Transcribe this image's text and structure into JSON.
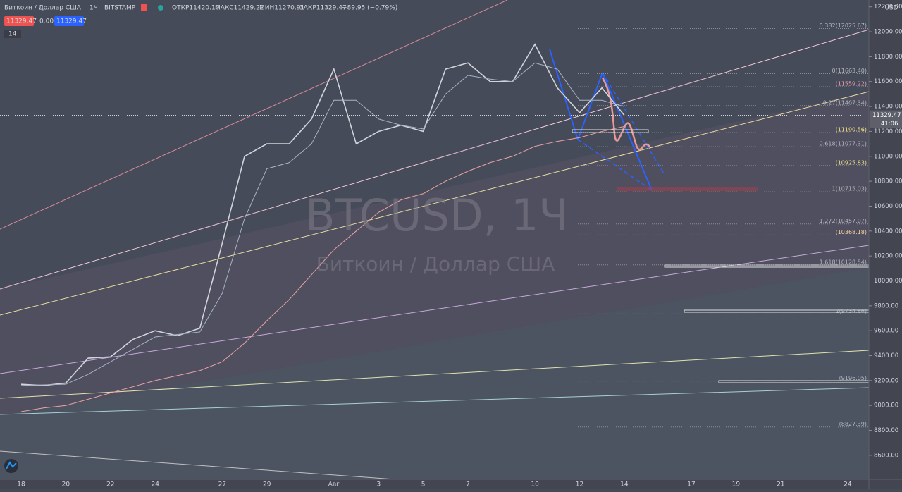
{
  "chart_data": {
    "type": "line",
    "title": "Биткоин / Доллар США",
    "interval": "1Ч",
    "exchange": "BITSTAMP",
    "ohlc": [
      "ОТКР11420.10",
      "МАКС11429.22",
      "МИН11270.91",
      "ЗАКР11329.47",
      "−89.95 (−0.79%)"
    ],
    "quote": {
      "bid": "11329.47",
      "spread": "0.00",
      "ask": "11329.47"
    },
    "indicator_count": "14",
    "currency": "USD",
    "watermark": {
      "symbol": "BTCUSD, 1Ч",
      "name": "Биткоин / Доллар США"
    },
    "last_price": {
      "value": 11329.47,
      "label": "11329.47",
      "countdown": "41:06",
      "color": "#5d606b"
    },
    "categories": [
      "18",
      null,
      "20",
      null,
      "22",
      null,
      "24",
      null,
      null,
      "27",
      null,
      "29",
      null,
      null,
      "Авг",
      null,
      "3",
      null,
      "5",
      null,
      "7",
      null,
      null,
      "10",
      null,
      "12",
      null,
      "14",
      null,
      null,
      "17",
      null,
      "19",
      null,
      "21",
      null,
      null,
      "24"
    ],
    "series": [
      {
        "color": "#d1d4dc",
        "values": [
          9170,
          9160,
          9180,
          9380,
          9390,
          9530,
          9600,
          9560,
          9620,
          10300,
          11000,
          11100,
          11100,
          11300,
          11700,
          11100,
          11200,
          11250,
          11200,
          11700,
          11750,
          11600,
          11600,
          11900,
          11550,
          11350,
          11550,
          11330,
          null,
          null,
          null,
          null,
          null,
          null,
          null,
          null,
          null,
          null
        ]
      },
      {
        "color": "#a7b3c4",
        "values": [
          9160,
          9165,
          9170,
          9250,
          9350,
          9450,
          9550,
          9570,
          9590,
          9900,
          10500,
          10900,
          10950,
          11100,
          11450,
          11450,
          11300,
          11250,
          11220,
          11500,
          11650,
          11620,
          11600,
          11750,
          11700,
          11450,
          11450,
          11400,
          null,
          null,
          null,
          null,
          null,
          null,
          null,
          null,
          null,
          null
        ]
      },
      {
        "color": "#e8a3a3",
        "values": [
          8950,
          8980,
          9000,
          9050,
          9100,
          9150,
          9200,
          9240,
          9280,
          9350,
          9500,
          9680,
          9850,
          10050,
          10250,
          10400,
          10550,
          10650,
          10700,
          10800,
          10880,
          10950,
          11000,
          11080,
          11120,
          11150,
          11200,
          11240,
          null,
          null,
          null,
          null,
          null,
          null,
          null,
          null,
          null,
          null
        ]
      }
    ],
    "ylim": [
      8407,
      12255
    ],
    "yticks": [
      {
        "value": 8600,
        "label": "8600.00"
      },
      {
        "value": 8800,
        "label": "8800.00"
      },
      {
        "value": 9000,
        "label": "9000.00"
      },
      {
        "value": 9200,
        "label": "9200.00"
      },
      {
        "value": 9400,
        "label": "9400.00"
      },
      {
        "value": 9600,
        "label": "9600.00"
      },
      {
        "value": 9800,
        "label": "9800.00"
      },
      {
        "value": 10000,
        "label": "10000.00"
      },
      {
        "value": 10200,
        "label": "10200.00"
      },
      {
        "value": 10400,
        "label": "10400.00"
      },
      {
        "value": 10600,
        "label": "10600.00"
      },
      {
        "value": 10800,
        "label": "10800.00"
      },
      {
        "value": 11000,
        "label": "11000.00"
      },
      {
        "value": 11200,
        "label": "11200.00"
      },
      {
        "value": 11400,
        "label": "11400.00"
      },
      {
        "value": 11600,
        "label": "11600.00"
      },
      {
        "value": 11800,
        "label": "11800.00"
      },
      {
        "value": 12000,
        "label": "12000.00"
      },
      {
        "value": 12200,
        "label": "12200.00"
      }
    ],
    "levels": [
      {
        "value": 12025.67,
        "label": "0.382(12025.67)",
        "color": "#b2b5be"
      },
      {
        "value": 11663.4,
        "label": "0(11663.40)",
        "color": "#b2b5be"
      },
      {
        "value": 11559.22,
        "label": "(11559.22)",
        "color": "#f3a1b4"
      },
      {
        "value": 11407.34,
        "label": "0.27(11407.34)",
        "color": "#b2b5be"
      },
      {
        "value": 11190.56,
        "label": "(11190.56)",
        "color": "#f5e58a"
      },
      {
        "value": 11077.31,
        "label": "0.618(11077.31)",
        "color": "#b2b5be"
      },
      {
        "value": 10925.83,
        "label": "(10925.83)",
        "color": "#f5e58a"
      },
      {
        "value": 10715.03,
        "label": "1(10715.03)",
        "color": "#b2b5be"
      },
      {
        "value": 10457.07,
        "label": "1.272(10457.07)",
        "color": "#b2b5be"
      },
      {
        "value": 10368.18,
        "label": "(10368.18)",
        "color": "#f5d0a0"
      },
      {
        "value": 10128.54,
        "label": "1.618(10128.54)",
        "color": "#b2b5be"
      },
      {
        "value": 9734.86,
        "label": "2(9734.86)",
        "color": "#b2b5be"
      },
      {
        "value": 9196.05,
        "label": "(9196.05)",
        "color": "#b2b5be"
      },
      {
        "value": 8827.39,
        "label": "(8827.39)",
        "color": "#b2b5be"
      }
    ],
    "grid": false
  }
}
